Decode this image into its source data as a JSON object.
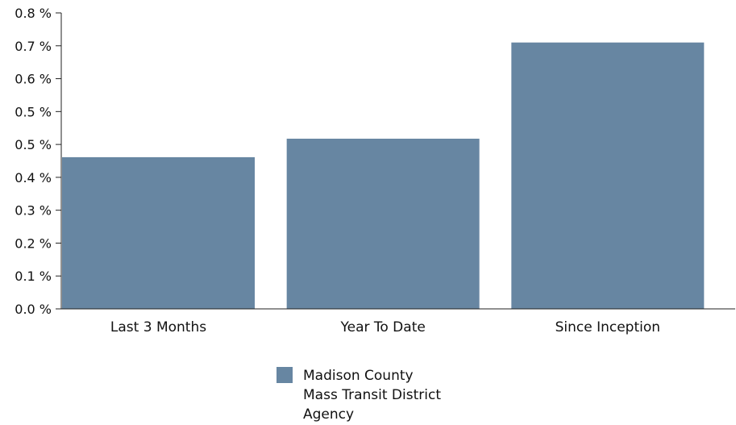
{
  "chart_data": {
    "type": "bar",
    "categories": [
      "Last 3 Months",
      "Year To Date",
      "Since Inception"
    ],
    "series": [
      {
        "name": "Madison County Mass Transit District Agency",
        "values": [
          0.41,
          0.46,
          0.72
        ],
        "color": "#6786a2"
      }
    ],
    "yticks": [
      "0.0 %",
      "0.1 %",
      "0.2 %",
      "0.3 %",
      "0.4 %",
      "0.5 %",
      "0.5 %",
      "0.6 %",
      "0.7 %",
      "0.8 %"
    ],
    "ylim": [
      0,
      0.8
    ],
    "grid": false,
    "legend_position": "bottom-center",
    "legend_lines": [
      "Madison County",
      "Mass Transit District",
      "Agency"
    ]
  }
}
